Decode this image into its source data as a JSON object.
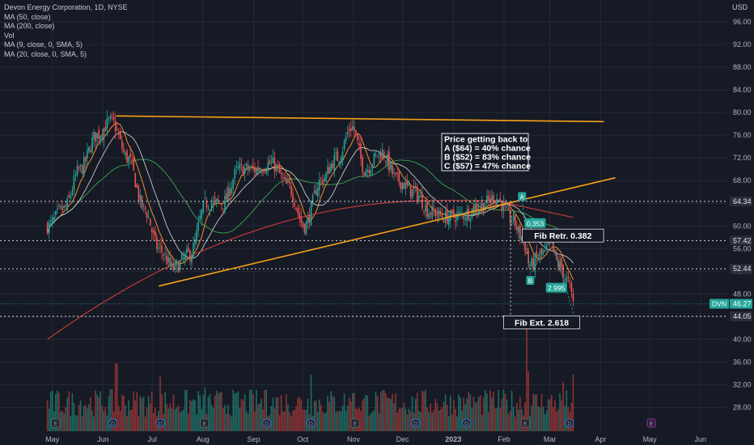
{
  "legend": {
    "title": "Devon Energy Corporation, 1D, NYSE",
    "indicators": [
      "MA (50, close)",
      "MA (200, close)",
      "Vol",
      "MA (9, close, 0, SMA, 5)",
      "MA (20, close, 0, SMA, 5)"
    ]
  },
  "currency": "USD",
  "colors": {
    "background": "#161a25",
    "grid": "#242938",
    "text": "#b2b5be",
    "up": "#26a69a",
    "down": "#ef5350",
    "trendline": "#f7a11a",
    "ma9": "#f0902f",
    "ma20": "#c7c7c7",
    "ma50": "#3a9a48",
    "ma200": "#c0393a"
  },
  "chart_data": {
    "type": "candlestick",
    "y_ticks": [
      28,
      32,
      36,
      40,
      44,
      48,
      52,
      56,
      60,
      64,
      68,
      72,
      76,
      80,
      84,
      88,
      92,
      96
    ],
    "ylim": [
      26,
      99
    ],
    "x_ticks": [
      "May",
      "Jun",
      "Jul",
      "Aug",
      "Sep",
      "Oct",
      "Nov",
      "Dec",
      "2023",
      "Feb",
      "Mar",
      "Apr",
      "May",
      "Jun"
    ],
    "price_anchors": [
      [
        "2022-04-28",
        60
      ],
      [
        "2022-05-08",
        63
      ],
      [
        "2022-05-18",
        70
      ],
      [
        "2022-05-28",
        76
      ],
      [
        "2022-06-06",
        78.5
      ],
      [
        "2022-06-16",
        72
      ],
      [
        "2022-06-26",
        63
      ],
      [
        "2022-07-05",
        56
      ],
      [
        "2022-07-14",
        52.5
      ],
      [
        "2022-07-24",
        55
      ],
      [
        "2022-08-03",
        64
      ],
      [
        "2022-08-13",
        64
      ],
      [
        "2022-08-23",
        70
      ],
      [
        "2022-09-02",
        70
      ],
      [
        "2022-09-12",
        71
      ],
      [
        "2022-09-22",
        67
      ],
      [
        "2022-10-02",
        60
      ],
      [
        "2022-10-12",
        68
      ],
      [
        "2022-10-22",
        72
      ],
      [
        "2022-10-31",
        77.5
      ],
      [
        "2022-11-08",
        70
      ],
      [
        "2022-11-18",
        73
      ],
      [
        "2022-11-28",
        68
      ],
      [
        "2022-12-08",
        66
      ],
      [
        "2022-12-18",
        62.5
      ],
      [
        "2022-12-28",
        61.5
      ],
      [
        "2023-01-07",
        62
      ],
      [
        "2023-01-17",
        63.5
      ],
      [
        "2023-01-27",
        65
      ],
      [
        "2023-02-06",
        61
      ],
      [
        "2023-02-12",
        58
      ],
      [
        "2023-02-17",
        53
      ],
      [
        "2023-02-24",
        55
      ],
      [
        "2023-03-01",
        56.5
      ],
      [
        "2023-03-07",
        53
      ],
      [
        "2023-03-12",
        50
      ],
      [
        "2023-03-16",
        46.3
      ]
    ],
    "last_price": "46.27",
    "ticker": "DVN",
    "price_labels": [
      {
        "value": 64.34,
        "label": "64.34"
      },
      {
        "value": 57.42,
        "label": "57.42"
      },
      {
        "value": 52.44,
        "label": "52.44"
      },
      {
        "value": 44.05,
        "label": "44.05"
      }
    ],
    "trendlines": [
      {
        "name": "upper-resistance",
        "from": [
          "2022-06-09",
          79.4
        ],
        "to": [
          "2023-04-03",
          78.4
        ]
      },
      {
        "name": "lower-support",
        "from": [
          "2022-07-05",
          49.4
        ],
        "to": [
          "2023-04-10",
          68.5
        ]
      }
    ],
    "annotation_box": {
      "lines": [
        "Price getting back to",
        "A ($64) = 40% chance",
        "B ($52) = 83% chance",
        "C ($57) = 47% chance"
      ]
    },
    "markers": [
      {
        "label": "A",
        "date": "2023-02-12",
        "value": 65.2
      },
      {
        "label": "B",
        "date": "2023-02-17",
        "value": 50.4
      },
      {
        "label": "C",
        "date": "2023-03-02",
        "value": 58.0
      },
      {
        "label": "D",
        "date": "2023-03-16",
        "value": 42.7
      }
    ],
    "fib_ratios": [
      {
        "label": "0.353",
        "date": "2023-02-20",
        "value": 60.5
      },
      {
        "label": "2.995",
        "date": "2023-03-05",
        "value": 49.1
      }
    ],
    "fib_labels": [
      {
        "label": "Fib Retr. 0.382",
        "date": "2023-03-09",
        "value": 58.3
      },
      {
        "label": "Fib Ext. 2.618",
        "date": "2023-02-24",
        "value": 43.0
      }
    ],
    "events": [
      {
        "type": "E",
        "date": "2022-05-03"
      },
      {
        "type": "D",
        "date": "2022-06-07"
      },
      {
        "type": "D",
        "date": "2022-07-06"
      },
      {
        "type": "E",
        "date": "2022-08-02"
      },
      {
        "type": "D",
        "date": "2022-09-09"
      },
      {
        "type": "D",
        "date": "2022-10-06"
      },
      {
        "type": "E",
        "date": "2022-11-02"
      },
      {
        "type": "D",
        "date": "2022-12-09"
      },
      {
        "type": "D",
        "date": "2023-01-09"
      },
      {
        "type": "E",
        "date": "2023-02-14"
      },
      {
        "type": "D",
        "date": "2023-03-13"
      },
      {
        "type": "E",
        "date": "2023-05-02"
      }
    ]
  }
}
